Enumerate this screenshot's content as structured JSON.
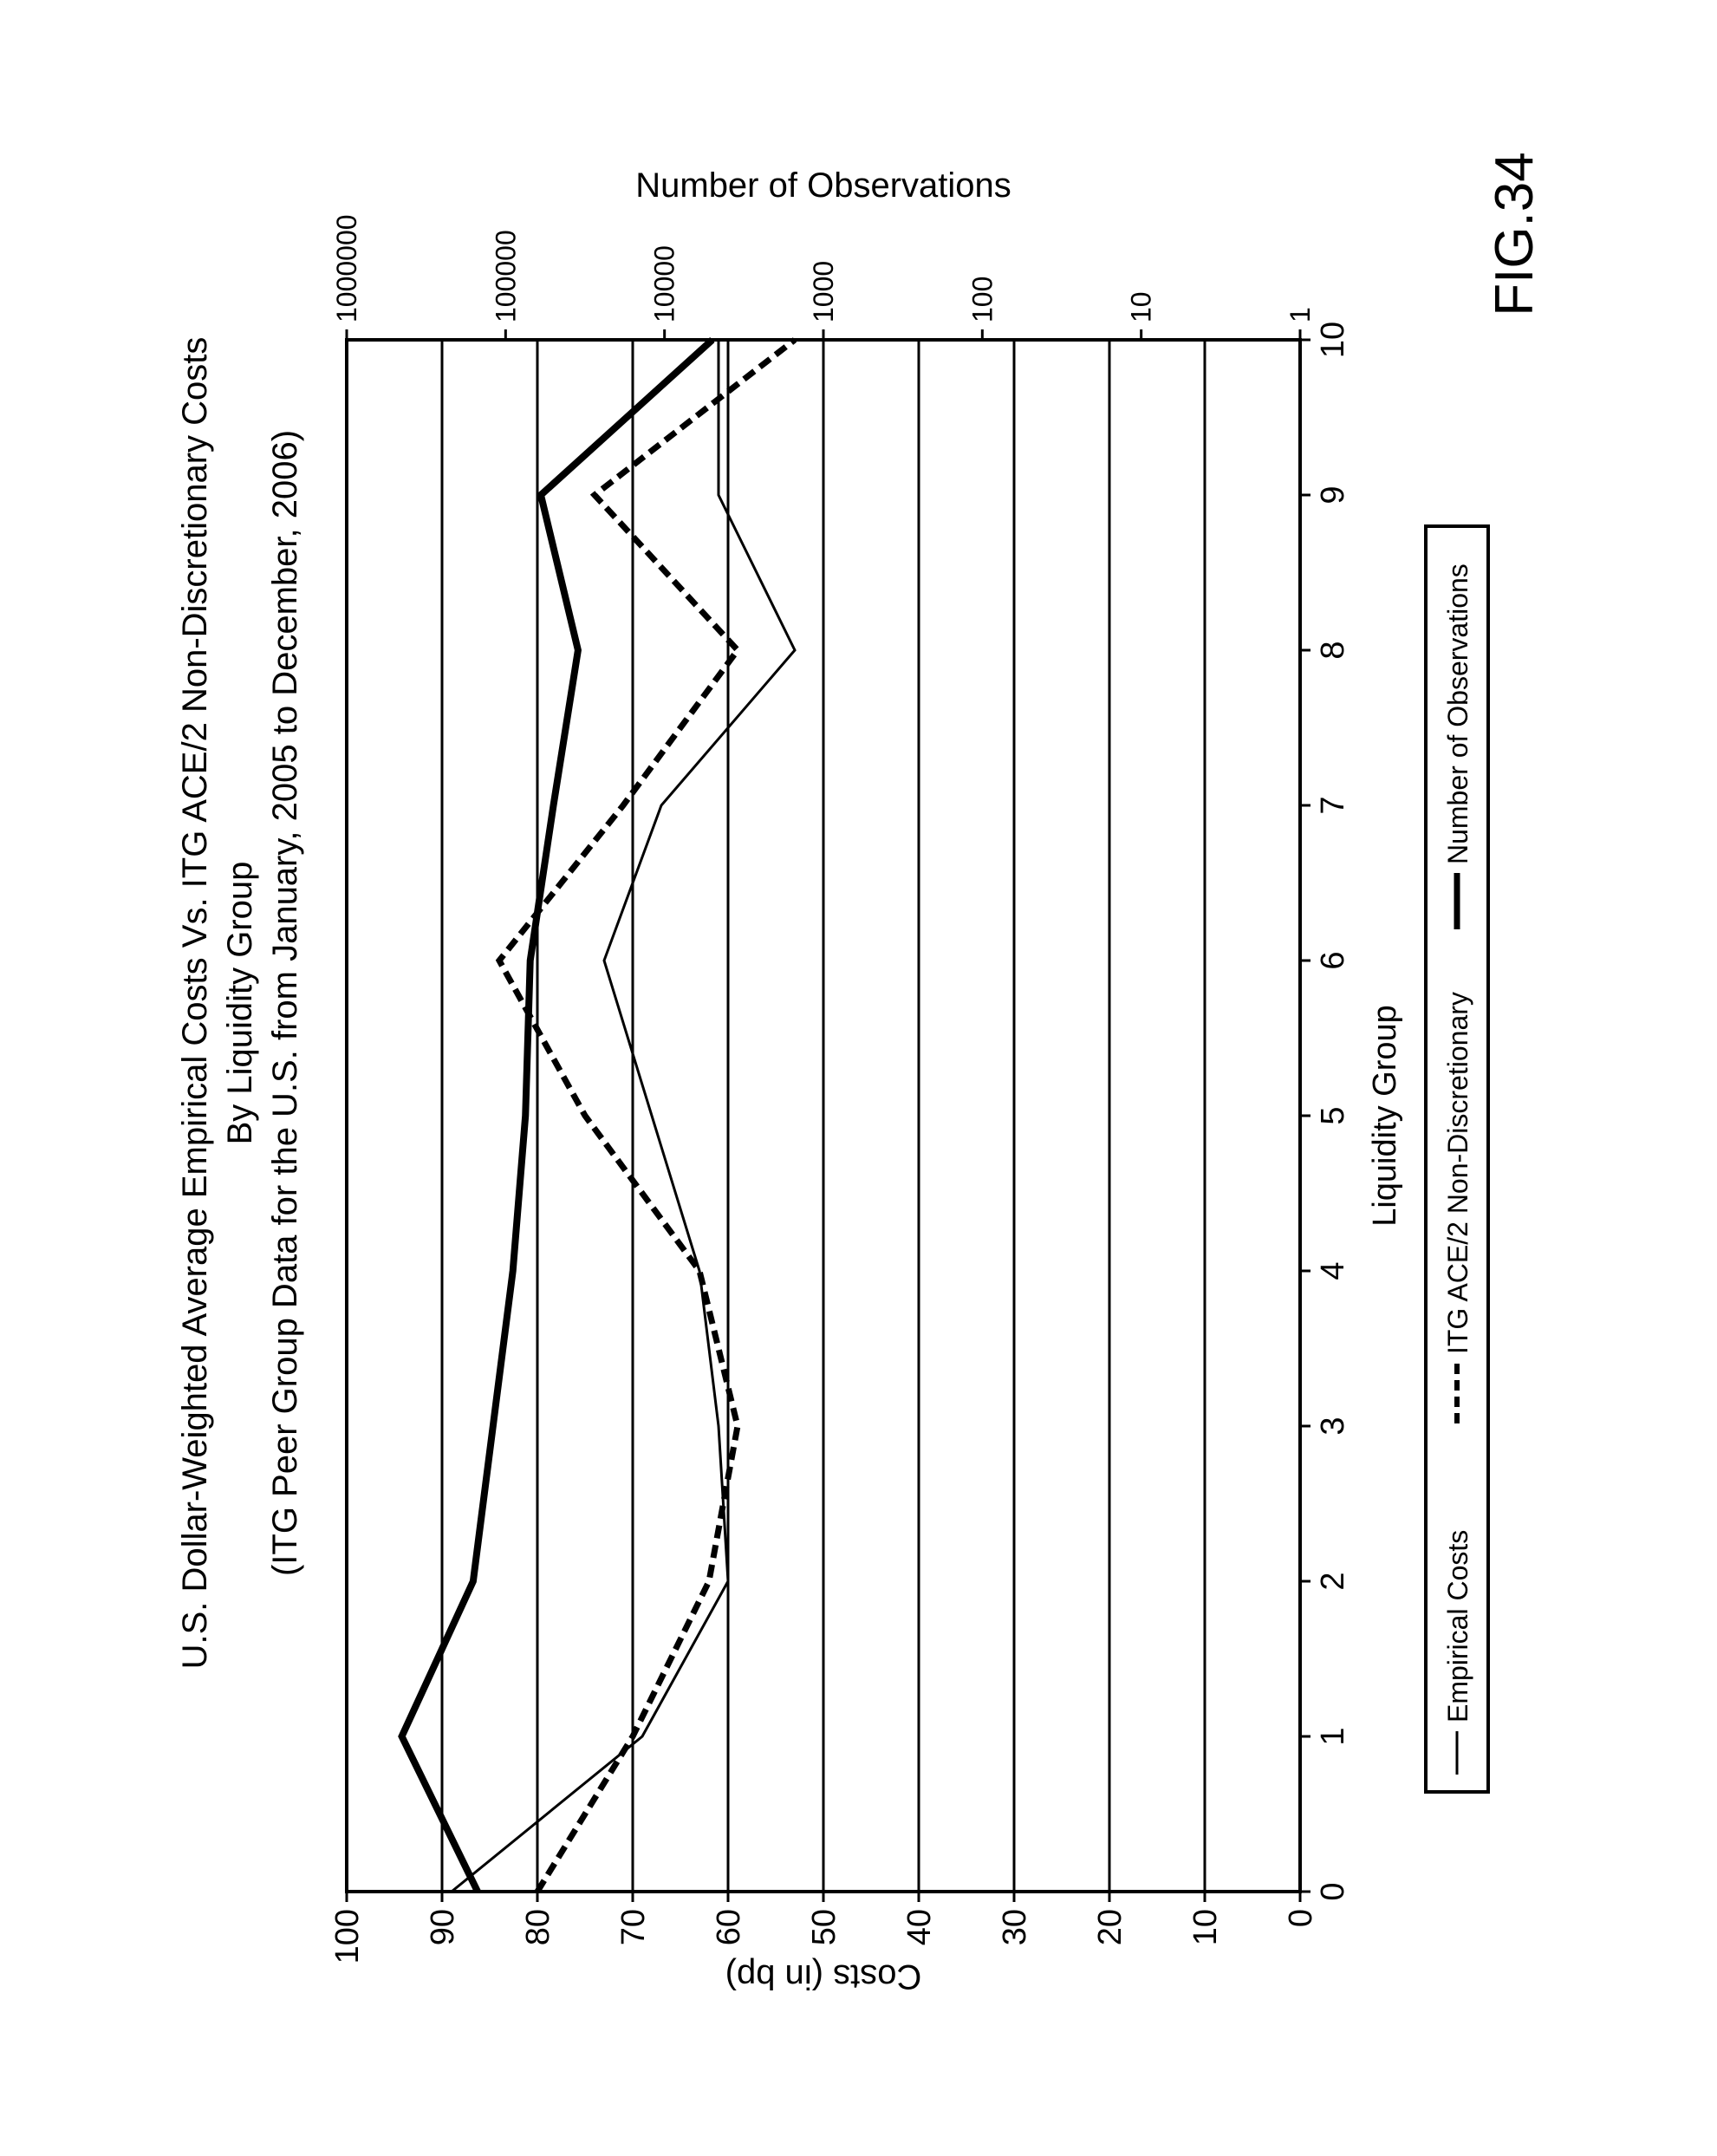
{
  "figure_label": "FIG.34",
  "chart_data": {
    "type": "line",
    "title": "U.S. Dollar-Weighted Average Empirical Costs Vs. ITG ACE/2 Non-Discretionary Costs",
    "subtitle": "By Liquidity Group",
    "subtitle2": "(ITG Peer Group Data for the U.S. from January, 2005 to December, 2006)",
    "xlabel": "Liquidity Group",
    "ylabel": "Costs (in bp)",
    "y2label": "Number of Observations",
    "x": [
      0,
      1,
      2,
      3,
      4,
      5,
      6,
      7,
      8,
      9,
      10
    ],
    "xlim": [
      0,
      10
    ],
    "ylim": [
      0,
      100
    ],
    "y2lim": [
      1,
      1000000
    ],
    "y2scale": "log",
    "x_ticks": [
      "0",
      "1",
      "2",
      "3",
      "4",
      "5",
      "6",
      "7",
      "8",
      "9",
      "10"
    ],
    "y_ticks": [
      "0",
      "10",
      "20",
      "30",
      "40",
      "50",
      "60",
      "70",
      "80",
      "90",
      "100"
    ],
    "y2_ticks": [
      "1",
      "10",
      "100",
      "1000",
      "10000",
      "100000",
      "1000000"
    ],
    "grid": true,
    "orientation": "rotated 90 degrees counter-clockwise on the page",
    "legend_position": "bottom",
    "series": [
      {
        "name": "Empirical Costs",
        "axis": "left",
        "style": "thin-solid",
        "values": [
          89,
          69,
          60,
          61,
          63,
          68,
          73,
          67,
          53,
          61,
          61
        ]
      },
      {
        "name": "ITG ACE/2 Non-Discretionary",
        "axis": "left",
        "style": "dashed",
        "values": [
          80,
          70,
          62,
          59,
          63,
          75,
          84,
          71,
          59,
          74,
          53
        ]
      },
      {
        "name": "Number of Observations",
        "axis": "right",
        "style": "thick-solid",
        "values": [
          150000,
          450000,
          160000,
          120000,
          90000,
          75000,
          70000,
          50000,
          35000,
          60000,
          5000
        ]
      }
    ]
  }
}
